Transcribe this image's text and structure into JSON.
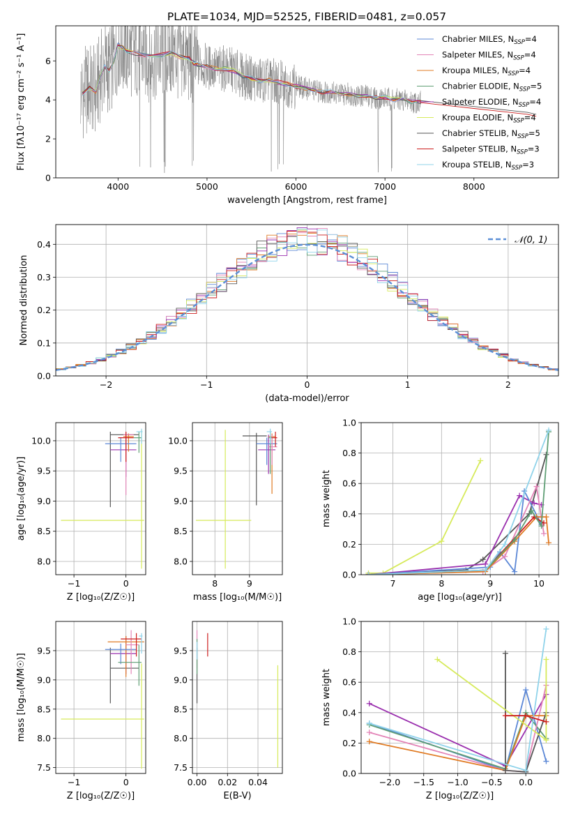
{
  "figure": {
    "title": "PLATE=1034, MJD=52525, FIBERID=0481, z=0.057",
    "colors": {
      "chabrier_miles": "#5b87d6",
      "salpeter_miles": "#e384b7",
      "kroupa_miles": "#e07b24",
      "chabrier_elodie": "#5e9e74",
      "salpeter_elodie": "#9a2fae",
      "kroupa_elodie": "#d6ea5a",
      "chabrier_stelib": "#555555",
      "salpeter_stelib": "#cc1c1c",
      "kroupa_stelib": "#8fd3ea",
      "data": "#808080",
      "normal": "#5b8fd6"
    }
  },
  "chart_data": [
    {
      "id": "spectrum",
      "type": "line",
      "xlabel": "wavelength [Angstrom, rest frame]",
      "ylabel": "Flux [fλ10⁻¹⁷ erg cm⁻² s⁻¹ A⁻¹]",
      "xlim": [
        3300,
        8950
      ],
      "ylim": [
        0,
        7.8
      ],
      "xticks": [
        4000,
        5000,
        6000,
        7000,
        8000
      ],
      "yticks": [
        0,
        2,
        4,
        6
      ],
      "grid": false,
      "legend_position": "top-right",
      "legend": [
        {
          "main": "Chabrier MILES, N",
          "sub": "SSP",
          "tail": "=4",
          "color_key": "chabrier_miles"
        },
        {
          "main": "Salpeter MILES, N",
          "sub": "SSP",
          "tail": "=4",
          "color_key": "salpeter_miles"
        },
        {
          "main": "Kroupa MILES, N",
          "sub": "SSP",
          "tail": "=4",
          "color_key": "kroupa_miles"
        },
        {
          "main": "Chabrier ELODIE, N",
          "sub": "SSP",
          "tail": "=5",
          "color_key": "chabrier_elodie"
        },
        {
          "main": "Salpeter ELODIE, N",
          "sub": "SSP",
          "tail": "=4",
          "color_key": "salpeter_elodie"
        },
        {
          "main": "Kroupa ELODIE, N",
          "sub": "SSP",
          "tail": "=4",
          "color_key": "kroupa_elodie"
        },
        {
          "main": "Chabrier STELIB, N",
          "sub": "SSP",
          "tail": "=5",
          "color_key": "chabrier_stelib"
        },
        {
          "main": "Salpeter STELIB, N",
          "sub": "SSP",
          "tail": "=3",
          "color_key": "salpeter_stelib"
        },
        {
          "main": "Kroupa STELIB, N",
          "sub": "SSP",
          "tail": "=3",
          "color_key": "kroupa_stelib"
        }
      ],
      "model_continuum": {
        "x": [
          3600,
          3680,
          3750,
          3800,
          3850,
          3900,
          3950,
          4000,
          4050,
          4100,
          4200,
          4300,
          4400,
          4500,
          4600,
          4700,
          4800,
          4850,
          4900,
          5000,
          5100,
          5200,
          5300,
          5400,
          5500,
          5600,
          5700,
          5800,
          5900,
          6000,
          6100,
          6200,
          6300,
          6400,
          6500,
          6600,
          6700,
          6800,
          6900,
          7000,
          7100,
          7200,
          7300,
          7400
        ],
        "y": [
          4.3,
          4.6,
          4.4,
          5.2,
          5.7,
          5.5,
          6.0,
          6.8,
          6.7,
          6.5,
          6.4,
          6.3,
          6.2,
          6.3,
          6.4,
          6.2,
          6.1,
          5.9,
          5.8,
          5.7,
          5.6,
          5.6,
          5.5,
          5.2,
          5.1,
          5.0,
          5.0,
          4.9,
          4.8,
          4.7,
          4.6,
          4.5,
          4.4,
          4.4,
          4.3,
          4.3,
          4.2,
          4.2,
          4.1,
          4.1,
          4.0,
          4.0,
          3.9,
          3.9
        ]
      },
      "model_continuum_extended": {
        "x": [
          7400,
          7600,
          7800,
          8000,
          8200,
          8400,
          8600,
          8700
        ],
        "y": [
          3.9,
          3.8,
          3.7,
          3.6,
          3.5,
          3.4,
          3.3,
          3.2
        ]
      }
    },
    {
      "id": "residuals",
      "type": "line",
      "xlabel": "(data-model)/error",
      "ylabel": "Normed distribution",
      "xlim": [
        -2.5,
        2.5
      ],
      "ylim": [
        0,
        0.46
      ],
      "xticks": [
        -2,
        -1,
        0,
        1,
        2
      ],
      "yticks": [
        0.0,
        0.1,
        0.2,
        0.3,
        0.4
      ],
      "grid": true,
      "legend": "𝒩(0, 1)",
      "legend_position": "top-right",
      "histogram_bins": [
        -2.5,
        2.5,
        50
      ]
    },
    {
      "id": "age-vs-Z",
      "type": "scatter",
      "xlabel": "Z [log₁₀(Z/Z☉)]",
      "ylabel": "age  [log₁₀(age/yr)]",
      "xlim": [
        -1.35,
        0.38
      ],
      "ylim": [
        7.78,
        10.3
      ],
      "xticks": [
        -1,
        0
      ],
      "yticks": [
        8.0,
        8.5,
        9.0,
        9.5,
        10.0
      ],
      "grid": true,
      "errorbars": [
        {
          "x": 0.3,
          "xerr": [
            1.55,
            0.05
          ],
          "y": 8.68,
          "yerr": [
            0.8,
            1.5
          ],
          "color_key": "kroupa_elodie"
        },
        {
          "x": -0.3,
          "xerr": [
            0,
            0.55
          ],
          "y": 10.1,
          "yerr": [
            1.2,
            0.05
          ],
          "color_key": "chabrier_stelib"
        },
        {
          "x": 0.0,
          "xerr": [
            0.3,
            0.2
          ],
          "y": 9.85,
          "yerr": [
            0.45,
            0.25
          ],
          "color_key": "salpeter_elodie"
        },
        {
          "x": 0.05,
          "xerr": [
            0.1,
            0.1
          ],
          "y": 10.07,
          "yerr": [
            0.25,
            0.05
          ],
          "color_key": "kroupa_miles"
        },
        {
          "x": -0.1,
          "xerr": [
            0.3,
            0.3
          ],
          "y": 9.95,
          "yerr": [
            0.3,
            0.1
          ],
          "color_key": "chabrier_miles"
        },
        {
          "x": 0.0,
          "xerr": [
            0.05,
            0.15
          ],
          "y": 10.1,
          "yerr": [
            1.0,
            0.05
          ],
          "color_key": "salpeter_miles"
        },
        {
          "x": 0.0,
          "xerr": [
            0.15,
            0.15
          ],
          "y": 10.05,
          "yerr": [
            0.4,
            0.1
          ],
          "color_key": "salpeter_stelib"
        },
        {
          "x": 0.25,
          "xerr": [
            0.1,
            0.05
          ],
          "y": 10.05,
          "yerr": [
            0.25,
            0.1
          ],
          "color_key": "chabrier_elodie"
        },
        {
          "x": 0.3,
          "xerr": [
            0.1,
            0.02
          ],
          "y": 10.15,
          "yerr": [
            0.2,
            0.05
          ],
          "color_key": "kroupa_stelib"
        }
      ]
    },
    {
      "id": "age-vs-mass",
      "type": "scatter",
      "xlabel": "mass [log₁₀(M/M☉)]",
      "ylabel": "",
      "xlim": [
        7.35,
        9.95
      ],
      "ylim": [
        7.78,
        10.3
      ],
      "xticks": [
        8,
        9
      ],
      "yticks": [
        8.0,
        8.5,
        9.0,
        9.5,
        10.0
      ],
      "grid": true,
      "errorbars": [
        {
          "x": 8.3,
          "xerr": [
            0.85,
            0.75
          ],
          "y": 8.68,
          "yerr": [
            0.8,
            1.5
          ],
          "color_key": "kroupa_elodie"
        },
        {
          "x": 9.2,
          "xerr": [
            0.4,
            0.3
          ],
          "y": 10.08,
          "yerr": [
            1.15,
            0.05
          ],
          "color_key": "chabrier_stelib"
        },
        {
          "x": 9.55,
          "xerr": [
            0.3,
            0.2
          ],
          "y": 9.85,
          "yerr": [
            0.4,
            0.25
          ],
          "color_key": "salpeter_elodie"
        },
        {
          "x": 9.65,
          "xerr": [
            0.1,
            0.1
          ],
          "y": 10.07,
          "yerr": [
            0.95,
            0.05
          ],
          "color_key": "kroupa_miles"
        },
        {
          "x": 9.5,
          "xerr": [
            0.3,
            0.3
          ],
          "y": 9.95,
          "yerr": [
            0.35,
            0.1
          ],
          "color_key": "chabrier_miles"
        },
        {
          "x": 9.65,
          "xerr": [
            0.1,
            0.15
          ],
          "y": 9.9,
          "yerr": [
            0.3,
            0.2
          ],
          "color_key": "salpeter_miles"
        },
        {
          "x": 9.75,
          "xerr": [
            0.1,
            0.05
          ],
          "y": 10.05,
          "yerr": [
            0.15,
            0.1
          ],
          "color_key": "salpeter_stelib"
        },
        {
          "x": 9.6,
          "xerr": [
            0.05,
            0.05
          ],
          "y": 10.05,
          "yerr": [
            0.6,
            0.1
          ],
          "color_key": "chabrier_elodie"
        },
        {
          "x": 9.6,
          "xerr": [
            0.1,
            0.05
          ],
          "y": 10.15,
          "yerr": [
            0.2,
            0.05
          ],
          "color_key": "kroupa_stelib"
        }
      ]
    },
    {
      "id": "mass-weight-vs-age",
      "type": "line",
      "xlabel": "age  [log₁₀(age/yr)]",
      "ylabel": "mass weight",
      "xlim": [
        6.35,
        10.4
      ],
      "ylim": [
        0,
        1.0
      ],
      "xticks": [
        7,
        8,
        9,
        10
      ],
      "yticks": [
        0.0,
        0.2,
        0.4,
        0.6,
        0.8,
        1.0
      ],
      "grid": true,
      "series": [
        {
          "color_key": "kroupa_elodie",
          "x": [
            6.5,
            6.8,
            8.0,
            8.8
          ],
          "y": [
            0.01,
            0.01,
            0.22,
            0.75
          ]
        },
        {
          "color_key": "chabrier_stelib",
          "x": [
            6.5,
            8.5,
            8.85,
            9.8,
            10.15
          ],
          "y": [
            0.0,
            0.03,
            0.1,
            0.4,
            0.79
          ]
        },
        {
          "color_key": "salpeter_elodie",
          "x": [
            6.5,
            8.9,
            9.6,
            9.9,
            10.05
          ],
          "y": [
            0.0,
            0.07,
            0.52,
            0.47,
            0.46
          ]
        },
        {
          "color_key": "chabrier_miles",
          "x": [
            6.5,
            9.0,
            9.2,
            9.5,
            9.7,
            10.05
          ],
          "y": [
            0.0,
            0.05,
            0.15,
            0.02,
            0.55,
            0.33
          ]
        },
        {
          "color_key": "salpeter_miles",
          "x": [
            6.5,
            8.85,
            9.3,
            9.95,
            10.1
          ],
          "y": [
            0.0,
            0.02,
            0.12,
            0.58,
            0.27
          ]
        },
        {
          "color_key": "kroupa_miles",
          "x": [
            6.5,
            8.9,
            9.5,
            9.95,
            10.15,
            10.2
          ],
          "y": [
            0.0,
            0.02,
            0.22,
            0.38,
            0.38,
            0.21
          ]
        },
        {
          "color_key": "salpeter_stelib",
          "x": [
            6.5,
            8.9,
            9.9,
            10.1
          ],
          "y": [
            0.0,
            0.03,
            0.38,
            0.34
          ]
        },
        {
          "color_key": "chabrier_elodie",
          "x": [
            6.5,
            8.9,
            9.5,
            9.85,
            10.05,
            10.2
          ],
          "y": [
            0.0,
            0.03,
            0.23,
            0.42,
            0.32,
            0.94
          ]
        },
        {
          "color_key": "kroupa_stelib",
          "x": [
            6.5,
            8.9,
            9.3,
            10.2
          ],
          "y": [
            0.0,
            0.03,
            0.2,
            0.95
          ]
        }
      ]
    },
    {
      "id": "mass-vs-Z",
      "type": "scatter",
      "xlabel": "Z [log₁₀(Z/Z☉)]",
      "ylabel": "mass [log₁₀(M/M☉)]",
      "xlim": [
        -1.35,
        0.38
      ],
      "ylim": [
        7.4,
        10.0
      ],
      "xticks": [
        -1,
        0
      ],
      "yticks": [
        7.5,
        8.0,
        8.5,
        9.0,
        9.5
      ],
      "grid": true,
      "errorbars": [
        {
          "x": 0.3,
          "xerr": [
            1.55,
            0.05
          ],
          "y": 8.33,
          "yerr": [
            0.85,
            0.95
          ],
          "color_key": "kroupa_elodie"
        },
        {
          "x": -0.3,
          "xerr": [
            0,
            0.55
          ],
          "y": 9.2,
          "yerr": [
            0.6,
            0.35
          ],
          "color_key": "chabrier_stelib"
        },
        {
          "x": 0.0,
          "xerr": [
            0.3,
            0.2
          ],
          "y": 9.45,
          "yerr": [
            0.35,
            0.3
          ],
          "color_key": "salpeter_elodie"
        },
        {
          "x": 0.0,
          "xerr": [
            0.35,
            0.35
          ],
          "y": 9.65,
          "yerr": [
            0.6,
            0.1
          ],
          "color_key": "kroupa_miles"
        },
        {
          "x": -0.1,
          "xerr": [
            0.3,
            0.3
          ],
          "y": 9.52,
          "yerr": [
            0.25,
            0.1
          ],
          "color_key": "chabrier_miles"
        },
        {
          "x": 0.1,
          "xerr": [
            0.1,
            0.15
          ],
          "y": 9.6,
          "yerr": [
            0.5,
            0.25
          ],
          "color_key": "salpeter_miles"
        },
        {
          "x": 0.2,
          "xerr": [
            0.3,
            0.1
          ],
          "y": 9.7,
          "yerr": [
            0.3,
            0.1
          ],
          "color_key": "salpeter_stelib"
        },
        {
          "x": 0.25,
          "xerr": [
            0.4,
            0.05
          ],
          "y": 9.3,
          "yerr": [
            0.4,
            0.3
          ],
          "color_key": "chabrier_elodie"
        },
        {
          "x": 0.3,
          "xerr": [
            0.05,
            0.02
          ],
          "y": 9.75,
          "yerr": [
            0.3,
            0.05
          ],
          "color_key": "kroupa_stelib"
        }
      ]
    },
    {
      "id": "mass-vs-ebv",
      "type": "scatter",
      "xlabel": "E(B-V)",
      "ylabel": "",
      "xlim": [
        -0.003,
        0.056
      ],
      "ylim": [
        7.4,
        10.0
      ],
      "xticks": [
        0.0,
        0.02,
        0.04
      ],
      "yticks": [
        7.5,
        8.0,
        8.5,
        9.0,
        9.5
      ],
      "grid": true,
      "errorbars": [
        {
          "x": 0.053,
          "y": 8.4,
          "yerr": [
            0.9,
            0.85
          ],
          "color_key": "kroupa_elodie"
        },
        {
          "x": 0.0,
          "y": 9.3,
          "yerr": [
            0.7,
            0.25
          ],
          "color_key": "chabrier_stelib"
        },
        {
          "x": 0.0,
          "y": 9.5,
          "yerr": [
            0.3,
            0.35
          ],
          "color_key": "salpeter_miles"
        },
        {
          "x": 0.007,
          "y": 9.6,
          "yerr": [
            0.2,
            0.2
          ],
          "color_key": "salpeter_stelib"
        },
        {
          "x": 0.0,
          "y": 9.4,
          "yerr": [
            0.3,
            0.3
          ],
          "color_key": "chabrier_elodie"
        },
        {
          "x": 0.0,
          "y": 9.55,
          "yerr": [
            0.2,
            0.1
          ],
          "color_key": "kroupa_stelib"
        }
      ]
    },
    {
      "id": "mass-weight-vs-Z",
      "type": "line",
      "xlabel": "Z [log₁₀(Z/Z☉)]",
      "ylabel": "mass weight",
      "xlim": [
        -2.42,
        0.48
      ],
      "ylim": [
        0,
        1.0
      ],
      "xticks": [
        -2.0,
        -1.5,
        -1.0,
        -0.5,
        0.0
      ],
      "yticks": [
        0.0,
        0.2,
        0.4,
        0.6,
        0.8,
        1.0
      ],
      "grid": true,
      "series": [
        {
          "color_key": "salpeter_elodie",
          "x": [
            -2.3,
            -0.3,
            0.3
          ],
          "y": [
            0.46,
            0.05,
            0.52
          ]
        },
        {
          "color_key": "chabrier_miles",
          "x": [
            -2.3,
            -0.3,
            0.0,
            0.3
          ],
          "y": [
            0.33,
            0.02,
            0.55,
            0.08
          ]
        },
        {
          "color_key": "chabrier_elodie",
          "x": [
            -2.3,
            -0.3,
            0.0,
            0.3
          ],
          "y": [
            0.32,
            0.03,
            0.4,
            0.23
          ]
        },
        {
          "color_key": "salpeter_miles",
          "x": [
            -2.3,
            -0.3,
            0.0,
            0.3
          ],
          "y": [
            0.27,
            0.02,
            0.01,
            0.58
          ]
        },
        {
          "color_key": "kroupa_miles",
          "x": [
            -2.3,
            -0.3,
            0.0,
            0.3
          ],
          "y": [
            0.21,
            0.02,
            0.38,
            0.38
          ]
        },
        {
          "color_key": "chabrier_stelib",
          "x": [
            -0.3,
            -0.3,
            0.0,
            0.3
          ],
          "y": [
            0.79,
            0.02,
            0.01,
            0.4
          ]
        },
        {
          "color_key": "kroupa_elodie",
          "x": [
            -1.3,
            0.3,
            0.3
          ],
          "y": [
            0.75,
            0.22,
            0.75
          ]
        },
        {
          "color_key": "kroupa_stelib",
          "x": [
            -2.3,
            0.0,
            0.3
          ],
          "y": [
            0.33,
            0.02,
            0.95
          ]
        },
        {
          "color_key": "salpeter_stelib",
          "x": [
            -0.3,
            0.0,
            0.3
          ],
          "y": [
            0.38,
            0.38,
            0.34
          ]
        }
      ]
    }
  ]
}
